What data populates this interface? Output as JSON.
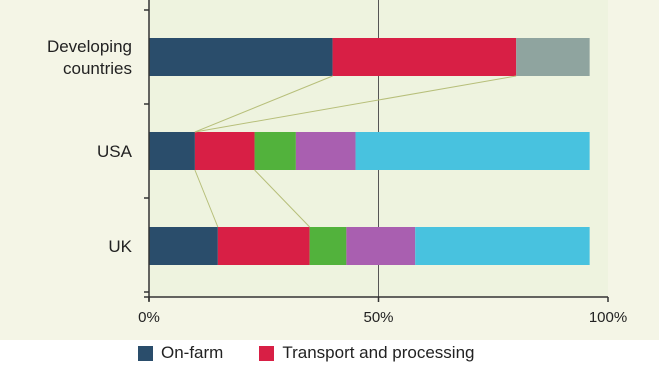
{
  "chart_data": {
    "type": "bar",
    "orientation": "horizontal",
    "stacked": true,
    "categories": [
      "Developing countries",
      "USA",
      "UK"
    ],
    "category_lines": [
      [
        "Developing",
        "countries"
      ],
      [
        "USA"
      ],
      [
        "UK"
      ]
    ],
    "series": [
      {
        "name": "On-farm",
        "color": "#2a4d6b",
        "values": [
          40,
          10,
          15
        ]
      },
      {
        "name": "Transport and processing",
        "color": "#d81f45",
        "values": [
          40,
          13,
          20
        ]
      },
      {
        "color": "#8fa49f",
        "values": [
          16,
          0,
          0
        ]
      },
      {
        "color": "#52b23c",
        "values": [
          0,
          9,
          8
        ]
      },
      {
        "color": "#a95fb0",
        "values": [
          0,
          13,
          15
        ]
      },
      {
        "color": "#48c2df",
        "values": [
          0,
          51,
          38
        ]
      }
    ],
    "xlim": [
      0,
      100
    ],
    "xticks": [
      "0%",
      "50%",
      "100%"
    ],
    "xtick_values": [
      0,
      50,
      100
    ],
    "grid": "vertical line at 50%",
    "legend_position": "bottom"
  }
}
